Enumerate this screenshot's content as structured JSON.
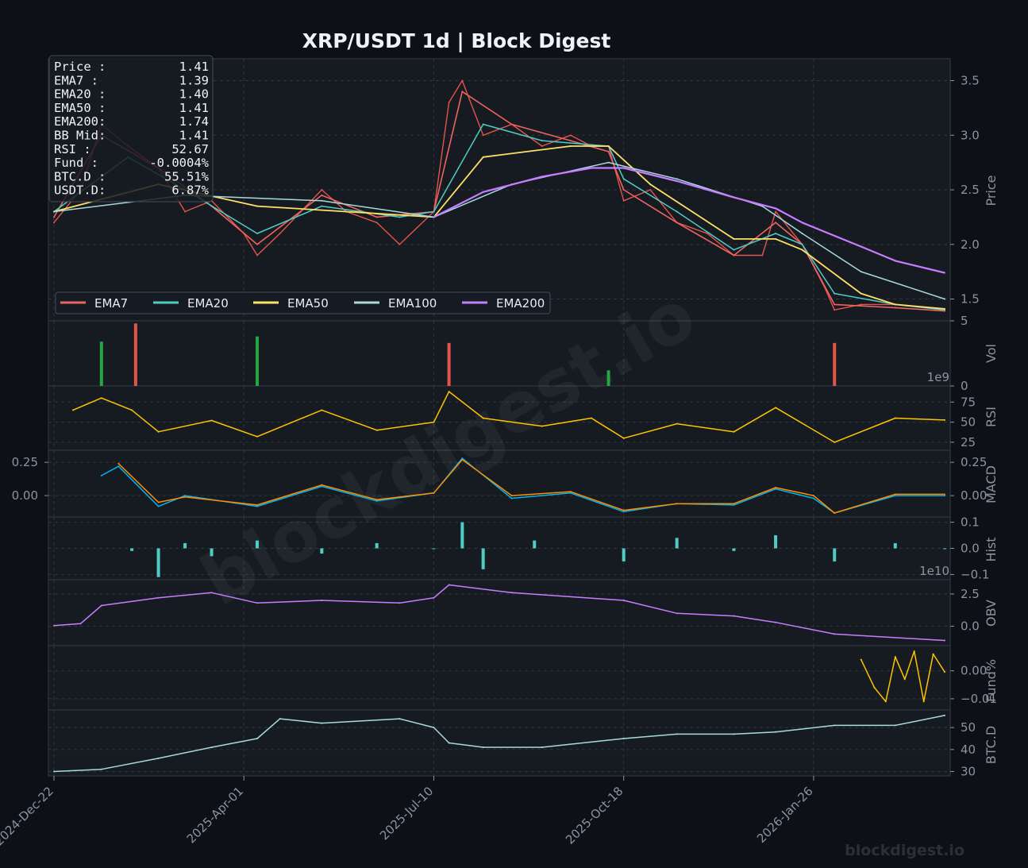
{
  "header": {
    "title": "XRP/USDT  1d  |  Block Digest"
  },
  "watermark": {
    "center": "blockdigest.io",
    "corner": "blockdigest.io"
  },
  "colors": {
    "background": "#0d1117",
    "panel": "#161b22",
    "grid": "#30363d",
    "up": "#26a641",
    "down": "#e5534b",
    "ema7": "#ef6461",
    "ema20": "#4ecdc4",
    "ema50": "#ffe066",
    "ema100": "#a8dadc",
    "ema200": "#c77dff",
    "rsi": "#ffc300",
    "macd": "#00b4f0",
    "signal": "#ff8c00",
    "hist": "#4ecdc4",
    "obv": "#c77dff",
    "funding": "#ffc300",
    "btcd": "#a8dadc"
  },
  "info_box": [
    {
      "label": "Price :",
      "value": "1.41"
    },
    {
      "label": "EMA7  :",
      "value": "1.39"
    },
    {
      "label": "EMA20 :",
      "value": "1.40"
    },
    {
      "label": "EMA50 :",
      "value": "1.41"
    },
    {
      "label": "EMA200:",
      "value": "1.74"
    },
    {
      "label": "BB Mid:",
      "value": "1.41"
    },
    {
      "label": "RSI   :",
      "value": "52.67"
    },
    {
      "label": "Fund  :",
      "value": "-0.0004%"
    },
    {
      "label": "BTC.D :",
      "value": "55.51%"
    },
    {
      "label": "USDT.D:",
      "value": "6.87%"
    }
  ],
  "legend": [
    "EMA7",
    "EMA20",
    "EMA50",
    "EMA100",
    "EMA200"
  ],
  "chart_data": {
    "type": "line",
    "x_ticks": [
      "2024-Dec-22",
      "2025-Apr-01",
      "2025-Jul-10",
      "2025-Oct-18",
      "2026-Jan-26"
    ],
    "x_range": [
      "2024-Dec-22",
      "2026-Apr-05"
    ],
    "grid": true,
    "legend_position": "lower-left",
    "panels": [
      {
        "name": "price",
        "ylabel": "Price",
        "ylim": [
          1.3,
          3.7
        ],
        "y_ticks": [
          "1.5",
          "2.0",
          "2.5",
          "3.0",
          "3.5"
        ],
        "series": [
          {
            "name": "Close",
            "x": [
              "2024-Dec-22",
              "2025-Jan-05",
              "2025-Jan-16",
              "2025-Jan-30",
              "2025-Feb-15",
              "2025-Mar-01",
              "2025-Mar-15",
              "2025-Apr-01",
              "2025-Apr-08",
              "2025-Apr-20",
              "2025-May-12",
              "2025-May-25",
              "2025-Jun-10",
              "2025-Jun-22",
              "2025-Jul-10",
              "2025-Jul-18",
              "2025-Jul-25",
              "2025-Aug-05",
              "2025-Aug-20",
              "2025-Sep-05",
              "2025-Sep-20",
              "2025-Oct-01",
              "2025-Oct-10",
              "2025-Oct-18",
              "2025-Nov-01",
              "2025-Nov-15",
              "2025-Dec-01",
              "2025-Dec-15",
              "2025-Dec-30",
              "2026-Jan-06",
              "2026-Jan-20",
              "2026-Feb-01",
              "2026-Feb-06",
              "2026-Feb-20",
              "2026-Mar-10",
              "2026-Apr-05"
            ],
            "y": [
              2.2,
              2.5,
              3.1,
              2.9,
              2.7,
              2.3,
              2.4,
              2.1,
              1.9,
              2.1,
              2.5,
              2.3,
              2.2,
              2.0,
              2.3,
              3.3,
              3.5,
              3.0,
              3.1,
              2.9,
              3.0,
              2.9,
              2.9,
              2.4,
              2.5,
              2.2,
              2.1,
              1.9,
              1.9,
              2.3,
              2.0,
              1.6,
              1.4,
              1.45,
              1.45,
              1.41
            ]
          },
          {
            "name": "EMA7",
            "x": [
              "2024-Dec-22",
              "2025-Jan-16",
              "2025-Feb-15",
              "2025-Mar-15",
              "2025-Apr-08",
              "2025-May-12",
              "2025-Jun-10",
              "2025-Jul-10",
              "2025-Jul-25",
              "2025-Aug-20",
              "2025-Sep-20",
              "2025-Oct-10",
              "2025-Oct-18",
              "2025-Nov-15",
              "2025-Dec-15",
              "2026-Jan-06",
              "2026-Jan-20",
              "2026-Feb-06",
              "2026-Mar-10",
              "2026-Apr-05"
            ],
            "y": [
              2.25,
              3.0,
              2.7,
              2.35,
              2.0,
              2.45,
              2.25,
              2.3,
              3.4,
              3.1,
              2.95,
              2.85,
              2.5,
              2.2,
              1.9,
              2.2,
              2.0,
              1.45,
              1.42,
              1.39
            ]
          },
          {
            "name": "EMA20",
            "x": [
              "2024-Dec-22",
              "2025-Jan-30",
              "2025-Mar-01",
              "2025-Apr-08",
              "2025-May-12",
              "2025-Jun-22",
              "2025-Jul-10",
              "2025-Aug-05",
              "2025-Sep-05",
              "2025-Oct-10",
              "2025-Oct-18",
              "2025-Nov-15",
              "2025-Dec-15",
              "2026-Jan-06",
              "2026-Jan-20",
              "2026-Feb-06",
              "2026-Mar-10",
              "2026-Apr-05"
            ],
            "y": [
              2.3,
              2.8,
              2.5,
              2.1,
              2.35,
              2.25,
              2.3,
              3.1,
              2.95,
              2.9,
              2.6,
              2.3,
              1.95,
              2.1,
              2.0,
              1.55,
              1.45,
              1.4
            ]
          },
          {
            "name": "EMA50",
            "x": [
              "2024-Dec-22",
              "2025-Feb-15",
              "2025-Apr-08",
              "2025-May-25",
              "2025-Jul-10",
              "2025-Aug-05",
              "2025-Sep-20",
              "2025-Oct-10",
              "2025-Nov-01",
              "2025-Dec-15",
              "2026-Jan-06",
              "2026-Jan-20",
              "2026-Feb-20",
              "2026-Mar-10",
              "2026-Apr-05"
            ],
            "y": [
              2.3,
              2.55,
              2.35,
              2.3,
              2.25,
              2.8,
              2.9,
              2.9,
              2.55,
              2.05,
              2.05,
              1.95,
              1.55,
              1.45,
              1.41
            ]
          },
          {
            "name": "EMA100",
            "x": [
              "2024-Dec-22",
              "2025-Mar-01",
              "2025-May-12",
              "2025-Jul-10",
              "2025-Aug-20",
              "2025-Oct-10",
              "2025-Nov-15",
              "2025-Dec-30",
              "2026-Jan-20",
              "2026-Feb-20",
              "2026-Apr-05"
            ],
            "y": [
              2.3,
              2.45,
              2.4,
              2.25,
              2.55,
              2.75,
              2.6,
              2.35,
              2.1,
              1.75,
              1.5
            ]
          },
          {
            "name": "EMA200",
            "x": [
              "2025-Jul-10",
              "2025-Aug-05",
              "2025-Sep-05",
              "2025-Oct-01",
              "2025-Oct-18",
              "2025-Nov-15",
              "2025-Dec-15",
              "2026-Jan-06",
              "2026-Jan-20",
              "2026-Feb-20",
              "2026-Mar-10",
              "2026-Apr-05"
            ],
            "y": [
              2.25,
              2.48,
              2.62,
              2.7,
              2.7,
              2.58,
              2.43,
              2.33,
              2.2,
              1.98,
              1.85,
              1.74
            ]
          }
        ]
      },
      {
        "name": "volume",
        "ylabel": "Vol",
        "ylim": [
          0,
          5
        ],
        "y_ticks": [
          "0",
          "5"
        ],
        "scale_label": "1e9",
        "series": [
          {
            "name": "Volume",
            "x": [
              "2025-Jan-16",
              "2025-Feb-03",
              "2025-Apr-08",
              "2025-Jul-18",
              "2025-Oct-10",
              "2026-Feb-06"
            ],
            "y": [
              3.4,
              4.8,
              3.8,
              3.3,
              1.2,
              3.3
            ]
          }
        ]
      },
      {
        "name": "rsi",
        "ylabel": "RSI",
        "ylim": [
          15,
          95
        ],
        "y_ticks": [
          "25",
          "50",
          "75"
        ],
        "series": [
          {
            "name": "RSI",
            "x": [
              "2025-Jan-01",
              "2025-Jan-16",
              "2025-Feb-01",
              "2025-Feb-15",
              "2025-Mar-15",
              "2025-Apr-08",
              "2025-May-12",
              "2025-Jun-10",
              "2025-Jul-10",
              "2025-Jul-18",
              "2025-Aug-05",
              "2025-Sep-05",
              "2025-Oct-01",
              "2025-Oct-18",
              "2025-Nov-15",
              "2025-Dec-15",
              "2026-Jan-06",
              "2026-Feb-06",
              "2026-Mar-10",
              "2026-Apr-05"
            ],
            "y": [
              65,
              80,
              65,
              38,
              52,
              32,
              65,
              40,
              50,
              88,
              55,
              45,
              55,
              30,
              48,
              38,
              68,
              25,
              55,
              52.67
            ]
          }
        ]
      },
      {
        "name": "macd",
        "ylabel": "MACD",
        "ylim": [
          -0.16,
          0.34
        ],
        "y_ticks": [
          "0.00",
          "0.25"
        ],
        "series": [
          {
            "name": "MACD",
            "x": [
              "2025-Jan-16",
              "2025-Jan-25",
              "2025-Feb-15",
              "2025-Mar-01",
              "2025-Apr-08",
              "2025-May-12",
              "2025-Jun-10",
              "2025-Jul-10",
              "2025-Jul-25",
              "2025-Aug-20",
              "2025-Sep-20",
              "2025-Oct-18",
              "2025-Nov-15",
              "2025-Dec-15",
              "2026-Jan-06",
              "2026-Jan-26",
              "2026-Feb-06",
              "2026-Mar-10",
              "2026-Apr-05"
            ],
            "y": [
              0.15,
              0.22,
              -0.08,
              0.0,
              -0.08,
              0.07,
              -0.04,
              0.02,
              0.28,
              -0.02,
              0.02,
              -0.12,
              -0.06,
              -0.07,
              0.05,
              -0.02,
              -0.13,
              0.0,
              0.0
            ]
          },
          {
            "name": "Signal",
            "x": [
              "2025-Jan-25",
              "2025-Feb-15",
              "2025-Mar-01",
              "2025-Apr-08",
              "2025-May-12",
              "2025-Jun-10",
              "2025-Jul-10",
              "2025-Jul-25",
              "2025-Aug-20",
              "2025-Sep-20",
              "2025-Oct-18",
              "2025-Nov-15",
              "2025-Dec-15",
              "2026-Jan-06",
              "2026-Jan-26",
              "2026-Feb-06",
              "2026-Mar-10",
              "2026-Apr-05"
            ],
            "y": [
              0.24,
              -0.05,
              -0.01,
              -0.07,
              0.08,
              -0.03,
              0.02,
              0.27,
              0.0,
              0.03,
              -0.11,
              -0.06,
              -0.06,
              0.06,
              0.0,
              -0.13,
              0.01,
              0.01
            ]
          }
        ]
      },
      {
        "name": "hist",
        "ylabel": "Hist",
        "ylim": [
          -0.12,
          0.12
        ],
        "y_ticks": [
          "−0.1",
          "0.0",
          "0.1"
        ],
        "scale_label": "1e10",
        "series": [
          {
            "name": "Histogram",
            "x": [
              "2025-Feb-01",
              "2025-Feb-15",
              "2025-Mar-01",
              "2025-Mar-15",
              "2025-Apr-08",
              "2025-May-12",
              "2025-Jun-10",
              "2025-Jul-10",
              "2025-Jul-25",
              "2025-Aug-05",
              "2025-Sep-01",
              "2025-Oct-18",
              "2025-Nov-15",
              "2025-Dec-15",
              "2026-Jan-06",
              "2026-Feb-06",
              "2026-Mar-10",
              "2026-Apr-05"
            ],
            "y": [
              -0.01,
              -0.11,
              0.02,
              -0.03,
              0.03,
              -0.02,
              0.02,
              0.0,
              0.1,
              -0.08,
              0.03,
              -0.05,
              0.04,
              -0.01,
              0.05,
              -0.05,
              0.02,
              0.0
            ]
          }
        ]
      },
      {
        "name": "obv",
        "ylabel": "OBV",
        "ylim": [
          -1.5,
          3.6
        ],
        "y_ticks": [
          "0.0",
          "2.5"
        ],
        "series": [
          {
            "name": "OBV",
            "x": [
              "2024-Dec-22",
              "2025-Jan-05",
              "2025-Jan-16",
              "2025-Feb-15",
              "2025-Mar-15",
              "2025-Apr-08",
              "2025-May-12",
              "2025-Jun-22",
              "2025-Jul-10",
              "2025-Jul-18",
              "2025-Aug-20",
              "2025-Oct-18",
              "2025-Nov-15",
              "2025-Dec-15",
              "2026-Jan-06",
              "2026-Feb-06",
              "2026-Apr-05"
            ],
            "y": [
              0.05,
              0.2,
              1.6,
              2.2,
              2.6,
              1.8,
              2.0,
              1.8,
              2.2,
              3.2,
              2.6,
              2.0,
              1.0,
              0.8,
              0.3,
              -0.6,
              -1.1
            ]
          }
        ]
      },
      {
        "name": "funding",
        "ylabel": "Fund%",
        "ylim": [
          -0.014,
          0.009
        ],
        "y_ticks": [
          "−0.01",
          "0.00"
        ],
        "series": [
          {
            "name": "Funding",
            "x": [
              "2026-Feb-20",
              "2026-Feb-27",
              "2026-Mar-05",
              "2026-Mar-10",
              "2026-Mar-15",
              "2026-Mar-20",
              "2026-Mar-25",
              "2026-Mar-30",
              "2026-Apr-05"
            ],
            "y": [
              0.004,
              -0.006,
              -0.011,
              0.005,
              -0.003,
              0.007,
              -0.011,
              0.006,
              -0.0004
            ]
          }
        ]
      },
      {
        "name": "btcd",
        "ylabel": "BTC.D",
        "ylim": [
          28,
          58
        ],
        "y_ticks": [
          "30",
          "40",
          "50"
        ],
        "series": [
          {
            "name": "BTC.D",
            "x": [
              "2024-Dec-22",
              "2025-Jan-16",
              "2025-Feb-15",
              "2025-Mar-15",
              "2025-Apr-08",
              "2025-Apr-20",
              "2025-May-12",
              "2025-Jun-22",
              "2025-Jul-10",
              "2025-Jul-18",
              "2025-Aug-05",
              "2025-Sep-05",
              "2025-Oct-18",
              "2025-Nov-15",
              "2025-Dec-15",
              "2026-Jan-06",
              "2026-Feb-06",
              "2026-Mar-10",
              "2026-Apr-05"
            ],
            "y": [
              30,
              31,
              36,
              41,
              45,
              54,
              52,
              54,
              50,
              43,
              41,
              41,
              45,
              47,
              47,
              48,
              51,
              51,
              55.51
            ]
          }
        ]
      }
    ]
  }
}
